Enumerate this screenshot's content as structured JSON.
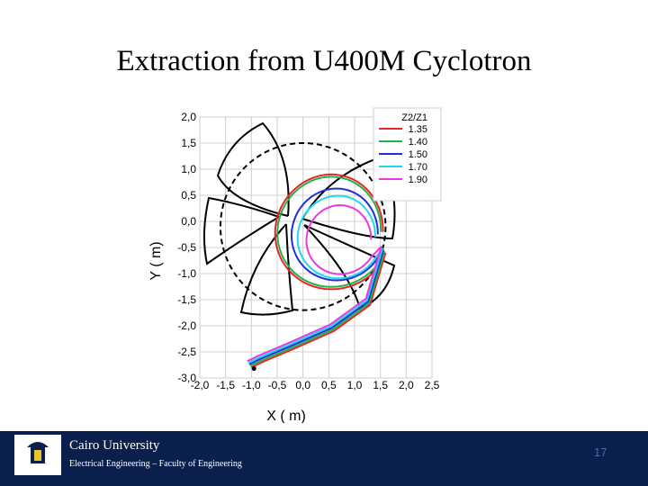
{
  "slide": {
    "title": "Extraction from U400M Cyclotron",
    "page_number": "17"
  },
  "footer": {
    "university": "Cairo University",
    "department": "Electrical Engineering – Faculty of Engineering"
  },
  "colors": {
    "footer_bg": "#0b1f4d",
    "series": [
      "#e8262a",
      "#22b24c",
      "#1f2fd6",
      "#1fd8f0",
      "#e83adf"
    ]
  },
  "chart_data": {
    "type": "line",
    "xlabel": "X ( m)",
    "ylabel": "Y ( m)",
    "xlim": [
      -2.0,
      2.5
    ],
    "ylim": [
      -3.0,
      2.0
    ],
    "x_ticks": [
      "-2,0",
      "-1,5",
      "-1,0",
      "-0,5",
      "0,0",
      "0,5",
      "1,0",
      "1,5",
      "2,0",
      "2,5"
    ],
    "y_ticks": [
      "2,0",
      "1,5",
      "1,0",
      "0,5",
      "0,0",
      "-0,5",
      "-1,0",
      "-1,5",
      "-2,0",
      "-2,5",
      "-3,0"
    ],
    "grid": true,
    "legend_title": "Z2/Z1",
    "legend_position": "top-right",
    "series": [
      {
        "name": "1.35",
        "color": "#e8262a",
        "radius": 1.0,
        "cx": 0.55,
        "cy": -0.2
      },
      {
        "name": "1.40",
        "color": "#22b24c",
        "radius": 0.96,
        "cx": 0.55,
        "cy": -0.2
      },
      {
        "name": "1.50",
        "color": "#1f2fd6",
        "radius": 0.8,
        "cx": 0.65,
        "cy": -0.25
      },
      {
        "name": "1.70",
        "color": "#1fd8f0",
        "radius": 0.72,
        "cx": 0.68,
        "cy": -0.3
      },
      {
        "name": "1.90",
        "color": "#e83adf",
        "radius": 0.6,
        "cx": 0.72,
        "cy": -0.35
      }
    ],
    "dashed_circle": {
      "cx": 0.0,
      "cy": -0.1,
      "r": 1.6
    }
  }
}
